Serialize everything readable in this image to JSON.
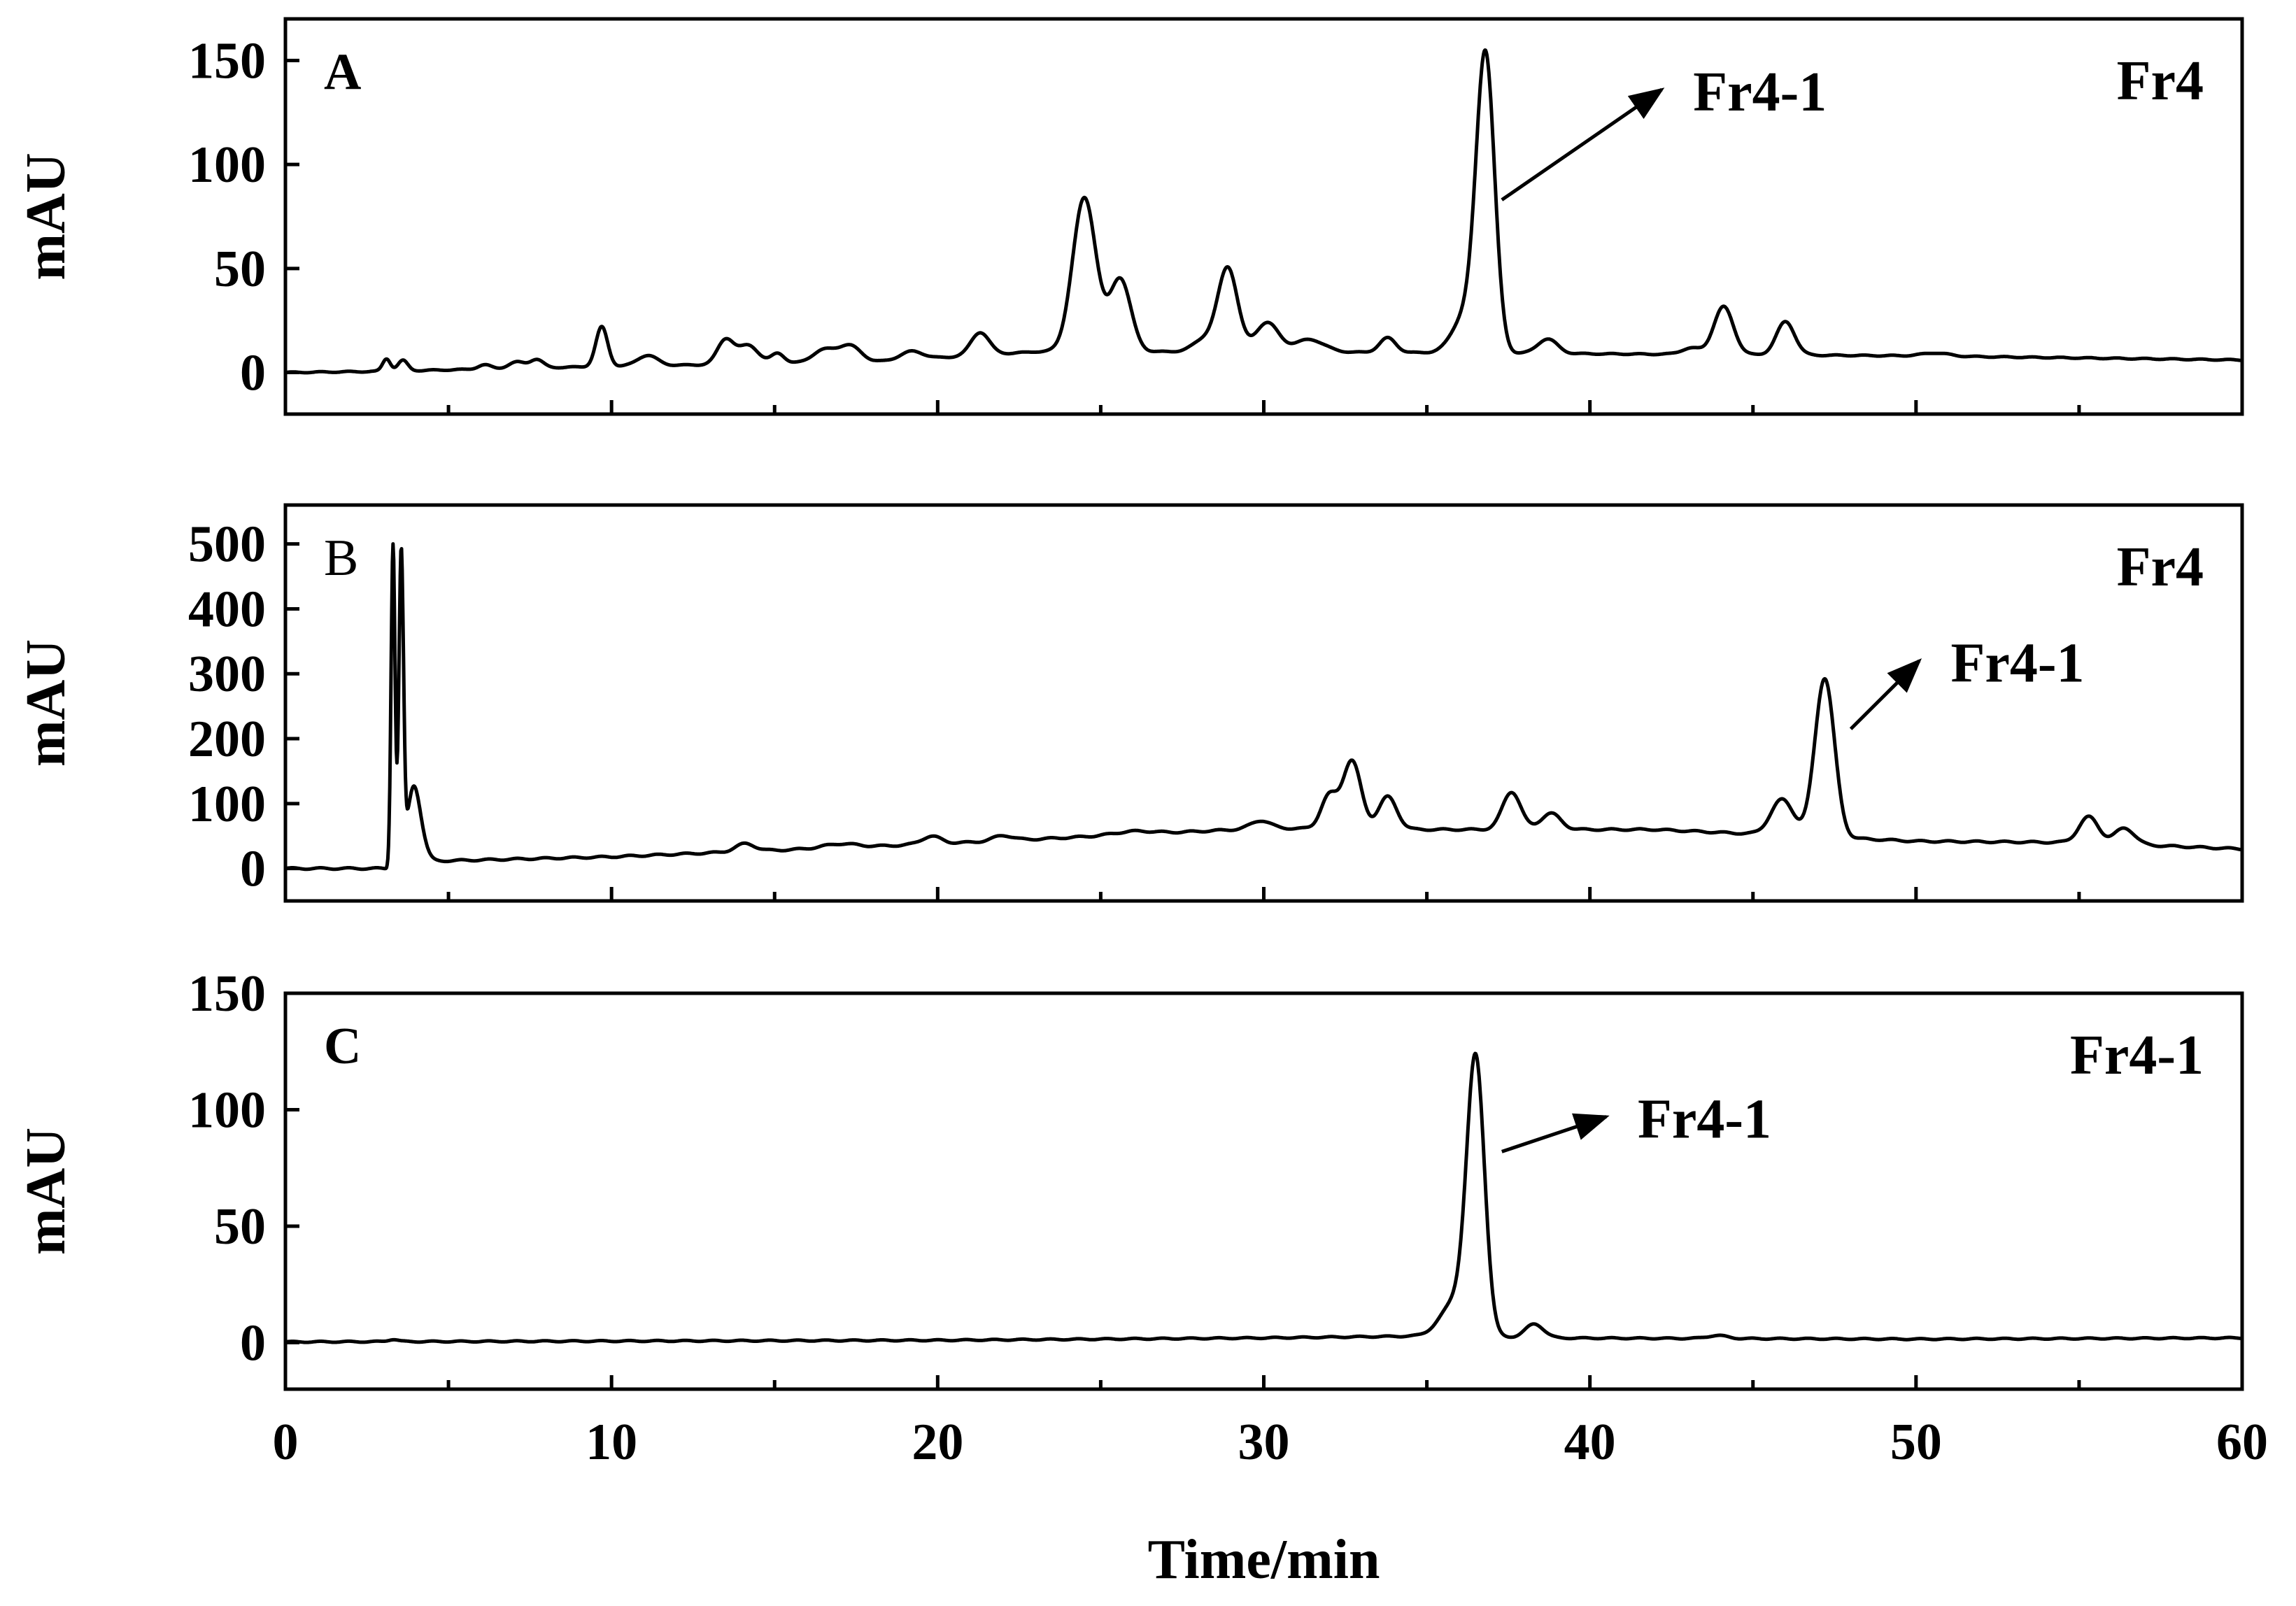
{
  "chart_data": [
    {
      "type": "line",
      "panel_label": "A",
      "sample_label": "Fr4",
      "ylabel": "mAU",
      "xlabel": "",
      "xlim": [
        0,
        60
      ],
      "ylim": [
        -20,
        170
      ],
      "yticks": [
        0,
        50,
        100,
        150
      ],
      "xticks": [
        0,
        10,
        20,
        30,
        40,
        50,
        60
      ],
      "show_xtick_labels": false,
      "annotations": [
        {
          "text": "Fr4-1",
          "peak_x": 36.8,
          "peak_y": 150,
          "arrow_from": [
            37.3,
            83
          ],
          "arrow_to": [
            42.2,
            136
          ]
        }
      ],
      "series": [
        {
          "baseline": [
            [
              0,
              0
            ],
            [
              2.8,
              0.5
            ],
            [
              10,
              3
            ],
            [
              18,
              5
            ],
            [
              23,
              10
            ],
            [
              30,
              10
            ],
            [
              40,
              9
            ],
            [
              50,
              8
            ],
            [
              60,
              6
            ]
          ],
          "peaks": [
            [
              3.1,
              6,
              0.12
            ],
            [
              3.6,
              5,
              0.15
            ],
            [
              6.1,
              2,
              0.2
            ],
            [
              7.1,
              3,
              0.25
            ],
            [
              7.7,
              4,
              0.2
            ],
            [
              9.7,
              19,
              0.18
            ],
            [
              11.1,
              5,
              0.3
            ],
            [
              13.5,
              12,
              0.25
            ],
            [
              14.2,
              9,
              0.3
            ],
            [
              15.1,
              5,
              0.2
            ],
            [
              16.5,
              6,
              0.35
            ],
            [
              17.3,
              8,
              0.35
            ],
            [
              19.2,
              4,
              0.35
            ],
            [
              21.3,
              11,
              0.28
            ],
            [
              24.5,
              74,
              0.36
            ],
            [
              25.6,
              35,
              0.32
            ],
            [
              28.2,
              6,
              0.35
            ],
            [
              28.9,
              40,
              0.3
            ],
            [
              30.1,
              14,
              0.35
            ],
            [
              31.4,
              6,
              0.45
            ],
            [
              33.8,
              7,
              0.25
            ],
            [
              36.2,
              18,
              0.4
            ],
            [
              36.8,
              140,
              0.28
            ],
            [
              38.7,
              7,
              0.3
            ],
            [
              43.1,
              3,
              0.3
            ],
            [
              44.1,
              23,
              0.3
            ],
            [
              46.0,
              16,
              0.28
            ],
            [
              50.6,
              1.5,
              0.4
            ]
          ]
        }
      ]
    },
    {
      "type": "line",
      "panel_label": "B",
      "sample_label": "Fr4",
      "ylabel": "mAU",
      "xlabel": "",
      "xlim": [
        0,
        60
      ],
      "ylim": [
        -50,
        560
      ],
      "yticks": [
        0,
        100,
        200,
        300,
        400,
        500
      ],
      "xticks": [
        0,
        10,
        20,
        30,
        40,
        50,
        60
      ],
      "show_xtick_labels": false,
      "annotations": [
        {
          "text": "Fr4-1",
          "peak_x": 47.2,
          "peak_y": 295,
          "arrow_from": [
            48.0,
            215
          ],
          "arrow_to": [
            50.1,
            320
          ]
        }
      ],
      "series": [
        {
          "baseline": [
            [
              0,
              0
            ],
            [
              3.1,
              0
            ],
            [
              3.3,
              10
            ],
            [
              5,
              12
            ],
            [
              10,
              18
            ],
            [
              15,
              28
            ],
            [
              20,
              38
            ],
            [
              25,
              50
            ],
            [
              30,
              62
            ],
            [
              35,
              60
            ],
            [
              42,
              60
            ],
            [
              50,
              42
            ],
            [
              55,
              40
            ],
            [
              60,
              30
            ]
          ],
          "peaks": [
            [
              3.3,
              490,
              0.06
            ],
            [
              3.55,
              470,
              0.07
            ],
            [
              3.9,
              90,
              0.18
            ],
            [
              4.1,
              40,
              0.2
            ],
            [
              14.1,
              12,
              0.3
            ],
            [
              17.0,
              6,
              0.5
            ],
            [
              19.8,
              12,
              0.3
            ],
            [
              22.0,
              8,
              0.3
            ],
            [
              26,
              5,
              0.6
            ],
            [
              29.9,
              12,
              0.3
            ],
            [
              32.0,
              50,
              0.25
            ],
            [
              32.7,
              105,
              0.28
            ],
            [
              33.8,
              50,
              0.28
            ],
            [
              37.6,
              58,
              0.28
            ],
            [
              38.8,
              25,
              0.3
            ],
            [
              45.9,
              55,
              0.35
            ],
            [
              47.2,
              245,
              0.3
            ],
            [
              55.3,
              40,
              0.3
            ],
            [
              56.4,
              25,
              0.3
            ]
          ]
        }
      ]
    },
    {
      "type": "line",
      "panel_label": "C",
      "sample_label": "Fr4-1",
      "ylabel": "mAU",
      "xlabel": "Time/min",
      "xlim": [
        0,
        60
      ],
      "ylim": [
        -20,
        150
      ],
      "yticks": [
        0,
        50,
        100,
        150
      ],
      "xticks": [
        0,
        10,
        20,
        30,
        40,
        50,
        60
      ],
      "show_xtick_labels": true,
      "annotations": [
        {
          "text": "Fr4-1",
          "peak_x": 36.5,
          "peak_y": 130,
          "arrow_from": [
            37.3,
            82
          ],
          "arrow_to": [
            40.5,
            97
          ]
        }
      ],
      "series": [
        {
          "baseline": [
            [
              0,
              0.3
            ],
            [
              20,
              1
            ],
            [
              30,
              2
            ],
            [
              36,
              3
            ],
            [
              38,
              2
            ],
            [
              50,
              1.5
            ],
            [
              60,
              2
            ]
          ],
          "peaks": [
            [
              3.3,
              1,
              0.15
            ],
            [
              35.9,
              15,
              0.45
            ],
            [
              36.5,
              115,
              0.27
            ],
            [
              38.3,
              6,
              0.28
            ],
            [
              43.9,
              1.3,
              0.3
            ]
          ]
        }
      ]
    }
  ]
}
